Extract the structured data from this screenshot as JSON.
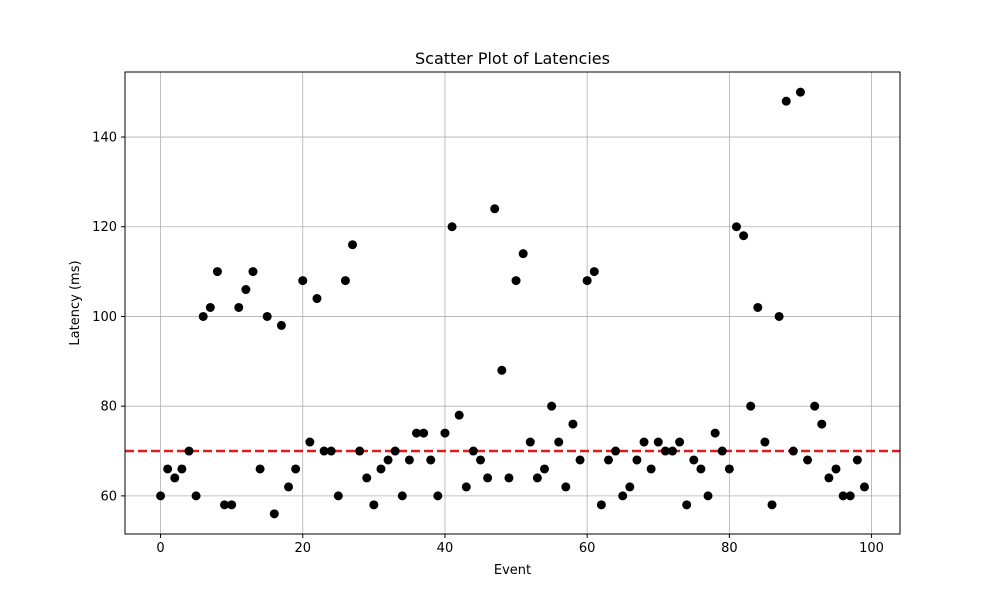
{
  "chart_data": {
    "type": "scatter",
    "title": "Scatter Plot of Latencies",
    "xlabel": "Event",
    "ylabel": "Latency (ms)",
    "xlim": [
      -5,
      104
    ],
    "ylim": [
      51.5,
      154.5
    ],
    "xticks": [
      0,
      20,
      40,
      60,
      80,
      100
    ],
    "yticks": [
      60,
      80,
      100,
      120,
      140
    ],
    "grid": true,
    "point_color": "#000000",
    "series": [
      {
        "x": [
          0,
          1,
          2,
          3,
          4,
          5,
          6,
          7,
          8,
          9,
          10,
          11,
          12,
          13,
          14,
          15,
          16,
          17,
          18,
          19,
          20,
          21,
          22,
          23,
          24,
          25,
          26,
          27,
          28,
          29,
          30,
          31,
          32,
          33,
          34,
          35,
          36,
          37,
          38,
          39,
          40,
          41,
          42,
          43,
          44,
          45,
          46,
          47,
          48,
          49,
          50,
          51,
          52,
          53,
          54,
          55,
          56,
          57,
          58,
          59,
          60,
          61,
          62,
          63,
          64,
          65,
          66,
          67,
          68,
          69,
          70,
          71,
          72,
          73,
          74,
          75,
          76,
          77,
          78,
          79,
          80,
          81,
          82,
          83,
          84,
          85,
          86,
          87,
          88,
          89,
          90,
          91,
          92,
          93,
          94,
          95,
          96,
          97,
          98,
          99
        ],
        "y": [
          60,
          66,
          64,
          66,
          70,
          60,
          100,
          102,
          110,
          58,
          58,
          102,
          106,
          110,
          66,
          100,
          56,
          98,
          62,
          66,
          108,
          72,
          104,
          70,
          70,
          60,
          108,
          116,
          70,
          64,
          58,
          66,
          68,
          70,
          60,
          68,
          74,
          74,
          68,
          60,
          74,
          120,
          78,
          62,
          70,
          68,
          64,
          124,
          88,
          64,
          108,
          114,
          72,
          64,
          66,
          80,
          72,
          62,
          76,
          68,
          108,
          110,
          58,
          68,
          70,
          60,
          62,
          68,
          72,
          66,
          72,
          70,
          70,
          72,
          58,
          68,
          66,
          60,
          74,
          70,
          66,
          120,
          118,
          80,
          102,
          72,
          58,
          100,
          148,
          70,
          150,
          68,
          80,
          76,
          64,
          66,
          60,
          60,
          68,
          62
        ]
      }
    ],
    "threshold": {
      "value": 70,
      "color": "#e31a1c",
      "style": "dashed"
    }
  }
}
